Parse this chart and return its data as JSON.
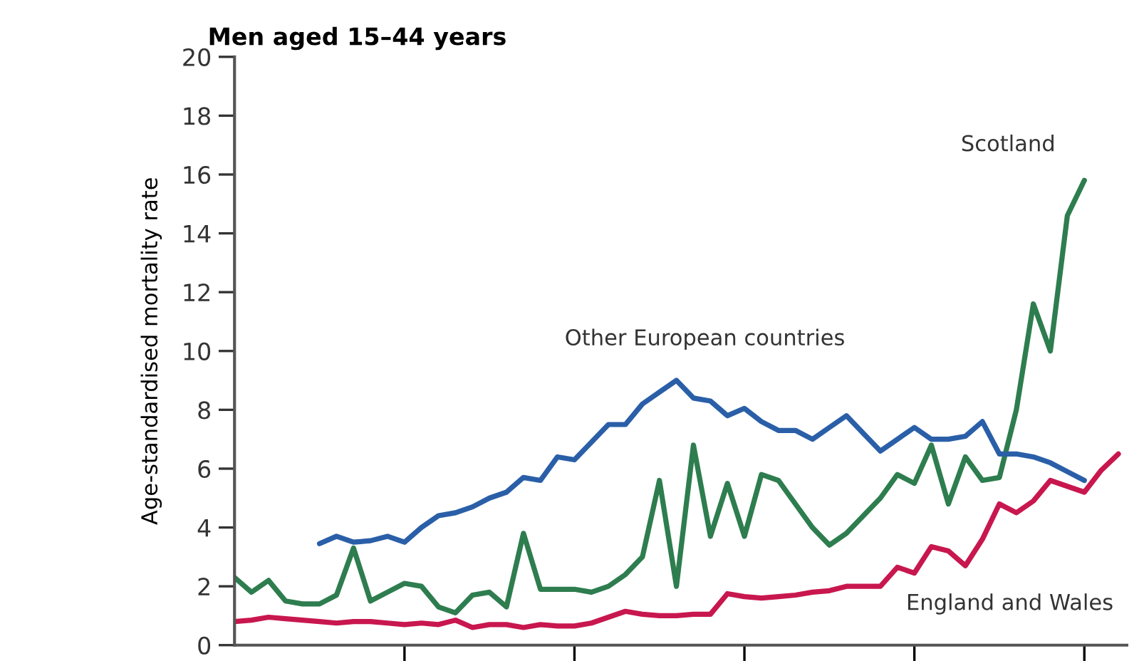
{
  "chart_data": {
    "type": "line",
    "title": "Men aged 15–44 years",
    "ylabel": "Age-standardised mortality rate",
    "categories": [
      null,
      null,
      null,
      null,
      null,
      null,
      null,
      null,
      null,
      null,
      null,
      null,
      null,
      null,
      null,
      null,
      null,
      null,
      null,
      null,
      null,
      null,
      null,
      null,
      null,
      null,
      null,
      null,
      null,
      null,
      null,
      null,
      null,
      null,
      null,
      null,
      null,
      null,
      null,
      null,
      null,
      null,
      null,
      null,
      null,
      null,
      null,
      null,
      null,
      null,
      null,
      null,
      null
    ],
    "series": [
      {
        "name": "Scotland",
        "color": "#2e7d4f",
        "values": [
          2.3,
          1.8,
          2.2,
          1.5,
          1.4,
          1.4,
          1.7,
          3.3,
          1.5,
          1.8,
          2.1,
          2.0,
          1.3,
          1.1,
          1.7,
          1.8,
          1.3,
          3.8,
          1.9,
          1.9,
          1.9,
          1.8,
          2.0,
          2.4,
          3.0,
          5.6,
          2.0,
          6.8,
          3.7,
          5.5,
          3.7,
          5.8,
          5.6,
          4.8,
          4.0,
          3.4,
          3.8,
          4.4,
          5.0,
          5.8,
          5.5,
          6.8,
          4.8,
          6.4,
          5.6,
          5.7,
          8.0,
          11.6,
          10.0,
          14.6,
          15.8,
          null,
          null
        ]
      },
      {
        "name": "Other European countries",
        "color": "#2a5fa8",
        "values": [
          null,
          null,
          null,
          null,
          null,
          3.45,
          3.7,
          3.5,
          3.55,
          3.7,
          3.5,
          4.0,
          4.4,
          4.5,
          4.7,
          5.0,
          5.2,
          5.7,
          5.6,
          6.4,
          6.3,
          6.9,
          7.5,
          7.5,
          8.2,
          8.6,
          9.0,
          8.4,
          8.3,
          7.8,
          8.05,
          7.6,
          7.3,
          7.3,
          7.0,
          7.4,
          7.8,
          7.2,
          6.6,
          7.0,
          7.4,
          7.0,
          7.0,
          7.1,
          7.6,
          6.5,
          6.5,
          6.4,
          6.2,
          5.9,
          5.6,
          null,
          null
        ]
      },
      {
        "name": "England and Wales",
        "color": "#c8174e",
        "values": [
          0.8,
          0.85,
          0.95,
          0.9,
          0.85,
          0.8,
          0.75,
          0.8,
          0.8,
          0.75,
          0.7,
          0.75,
          0.7,
          0.85,
          0.6,
          0.7,
          0.7,
          0.6,
          0.7,
          0.65,
          0.65,
          0.75,
          0.95,
          1.15,
          1.05,
          1.0,
          1.0,
          1.05,
          1.05,
          1.75,
          1.65,
          1.6,
          1.65,
          1.7,
          1.8,
          1.85,
          2.0,
          2.0,
          2.0,
          2.65,
          2.45,
          3.35,
          3.2,
          2.7,
          3.6,
          4.8,
          4.5,
          4.9,
          5.6,
          5.4,
          5.2,
          5.95,
          6.5
        ]
      }
    ],
    "ylim": [
      0,
      20
    ],
    "yticks": [
      0,
      2,
      4,
      6,
      8,
      10,
      12,
      14,
      16,
      18,
      20
    ],
    "grid": false,
    "legend": false
  }
}
